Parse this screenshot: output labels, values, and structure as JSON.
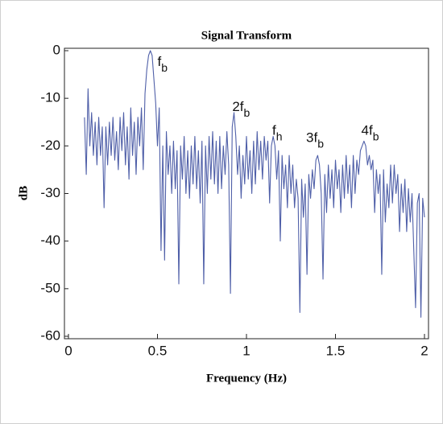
{
  "chart_data": {
    "type": "line",
    "title": "Signal Transform",
    "xlabel": "Frequency (Hz)",
    "ylabel": "dB",
    "xlim": [
      0,
      2
    ],
    "xticks": [
      0,
      0.5,
      1,
      1.5,
      2
    ],
    "ylim": [
      -60,
      0
    ],
    "yticks": [
      0,
      -10,
      -20,
      -30,
      -40,
      -50,
      -60
    ],
    "color": "#4f5fa8",
    "x": [
      0.09,
      0.1,
      0.11,
      0.12,
      0.13,
      0.14,
      0.15,
      0.16,
      0.17,
      0.18,
      0.19,
      0.2,
      0.21,
      0.22,
      0.23,
      0.24,
      0.25,
      0.26,
      0.27,
      0.28,
      0.29,
      0.3,
      0.31,
      0.32,
      0.33,
      0.34,
      0.35,
      0.36,
      0.37,
      0.38,
      0.39,
      0.4,
      0.41,
      0.42,
      0.43,
      0.44,
      0.45,
      0.46,
      0.47,
      0.48,
      0.49,
      0.5,
      0.51,
      0.52,
      0.53,
      0.54,
      0.55,
      0.56,
      0.57,
      0.58,
      0.59,
      0.6,
      0.61,
      0.62,
      0.63,
      0.64,
      0.65,
      0.66,
      0.67,
      0.68,
      0.69,
      0.7,
      0.71,
      0.72,
      0.73,
      0.74,
      0.75,
      0.76,
      0.77,
      0.78,
      0.79,
      0.8,
      0.81,
      0.82,
      0.83,
      0.84,
      0.85,
      0.86,
      0.87,
      0.88,
      0.89,
      0.9,
      0.91,
      0.92,
      0.93,
      0.94,
      0.95,
      0.96,
      0.97,
      0.98,
      0.99,
      1.0,
      1.01,
      1.02,
      1.03,
      1.04,
      1.05,
      1.06,
      1.07,
      1.08,
      1.09,
      1.1,
      1.11,
      1.12,
      1.13,
      1.14,
      1.15,
      1.16,
      1.17,
      1.18,
      1.19,
      1.2,
      1.21,
      1.22,
      1.23,
      1.24,
      1.25,
      1.26,
      1.27,
      1.28,
      1.29,
      1.3,
      1.31,
      1.32,
      1.33,
      1.34,
      1.35,
      1.36,
      1.37,
      1.38,
      1.39,
      1.4,
      1.41,
      1.42,
      1.43,
      1.44,
      1.45,
      1.46,
      1.47,
      1.48,
      1.49,
      1.5,
      1.51,
      1.52,
      1.53,
      1.54,
      1.55,
      1.56,
      1.57,
      1.58,
      1.59,
      1.6,
      1.61,
      1.62,
      1.63,
      1.64,
      1.65,
      1.66,
      1.67,
      1.68,
      1.69,
      1.7,
      1.71,
      1.72,
      1.73,
      1.74,
      1.75,
      1.76,
      1.77,
      1.78,
      1.79,
      1.8,
      1.81,
      1.82,
      1.83,
      1.84,
      1.85,
      1.86,
      1.87,
      1.88,
      1.89,
      1.9,
      1.91,
      1.92,
      1.93,
      1.94,
      1.95,
      1.96,
      1.97,
      1.98,
      1.99,
      2.0
    ],
    "values": [
      -14,
      -26,
      -8,
      -20,
      -13,
      -22,
      -15,
      -24,
      -14,
      -22,
      -16,
      -33,
      -16,
      -24,
      -15,
      -22,
      -14,
      -23,
      -17,
      -25,
      -14,
      -21,
      -13,
      -24,
      -16,
      -27,
      -12,
      -22,
      -15,
      -26,
      -14,
      -20,
      -12,
      -25,
      -9,
      -4,
      -1,
      0,
      -1,
      -6,
      -11,
      -20,
      -12,
      -42,
      -20,
      -44,
      -17,
      -26,
      -20,
      -30,
      -19,
      -29,
      -21,
      -49,
      -20,
      -27,
      -18,
      -30,
      -21,
      -31,
      -20,
      -28,
      -18,
      -29,
      -21,
      -32,
      -19,
      -49,
      -20,
      -30,
      -18,
      -27,
      -17,
      -28,
      -19,
      -30,
      -18,
      -29,
      -20,
      -26,
      -17,
      -24,
      -51,
      -16,
      -13,
      -18,
      -26,
      -20,
      -31,
      -22,
      -28,
      -18,
      -27,
      -21,
      -30,
      -19,
      -28,
      -17,
      -25,
      -19,
      -27,
      -18,
      -23,
      -19,
      -32,
      -20,
      -18,
      -20,
      -27,
      -21,
      -40,
      -22,
      -29,
      -24,
      -33,
      -22,
      -30,
      -24,
      -33,
      -27,
      -31,
      -55,
      -27,
      -35,
      -28,
      -47,
      -26,
      -31,
      -25,
      -29,
      -23,
      -22,
      -24,
      -30,
      -48,
      -26,
      -34,
      -24,
      -31,
      -25,
      -33,
      -23,
      -29,
      -25,
      -34,
      -24,
      -31,
      -22,
      -30,
      -24,
      -33,
      -22,
      -30,
      -23,
      -26,
      -21,
      -20,
      -19,
      -20,
      -24,
      -22,
      -25,
      -23,
      -34,
      -25,
      -30,
      -26,
      -47,
      -25,
      -36,
      -28,
      -33,
      -24,
      -32,
      -24,
      -30,
      -26,
      -38,
      -28,
      -34,
      -27,
      -38,
      -29,
      -36,
      -30,
      -42,
      -54,
      -32,
      -30,
      -56,
      -31,
      -35
    ],
    "annotations": [
      {
        "text": "f",
        "subscript": "b",
        "x": 0.5,
        "y": -2.5
      },
      {
        "text": "2f",
        "subscript": "b",
        "x": 0.92,
        "y": -12
      },
      {
        "text": "f",
        "subscript": "h",
        "x": 1.145,
        "y": -17
      },
      {
        "text": "3f",
        "subscript": "b",
        "x": 1.335,
        "y": -18.5
      },
      {
        "text": "4f",
        "subscript": "b",
        "x": 1.645,
        "y": -17
      }
    ]
  }
}
